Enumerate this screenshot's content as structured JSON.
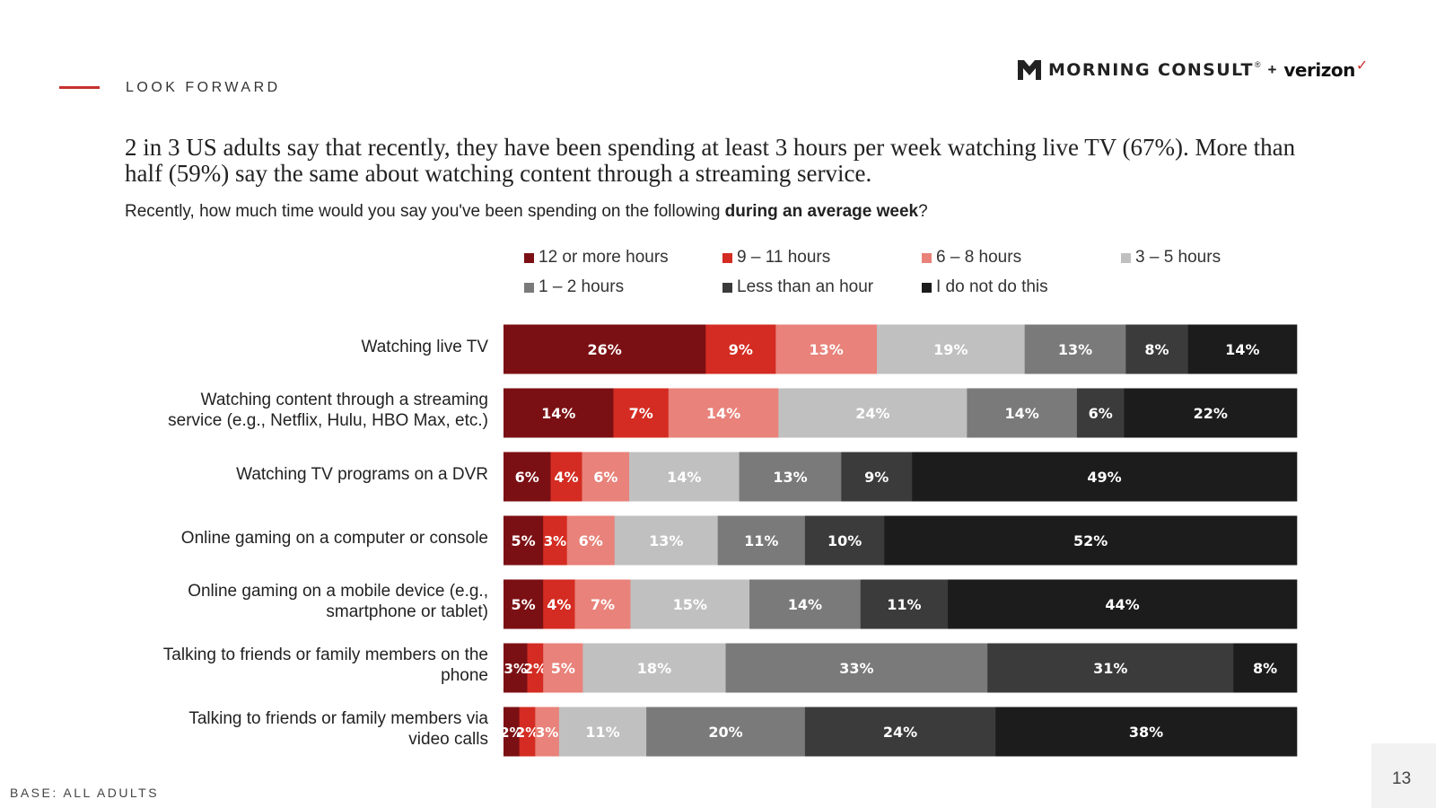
{
  "section_label": "LOOK FORWARD",
  "logo": {
    "brand": "MORNING CONSULT",
    "tm": "®",
    "plus": "+",
    "partner": "verizon",
    "check": "✓"
  },
  "headline": "2 in 3 US adults say that recently, they have been spending at least 3 hours per week watching live TV (67%). More than half (59%) say the same about watching content through a streaming service.",
  "question": {
    "pre": "Recently, how much time would you say you've been spending on the following ",
    "bold": "during an average week",
    "post": "?"
  },
  "footer": {
    "base": "BASE: ALL ADULTS",
    "page_number": "13"
  },
  "colors": {
    "accent": "#c8312e",
    "categories": [
      "#7b1014",
      "#d42c22",
      "#e8827a",
      "#c0c0c0",
      "#7a7a7a",
      "#3b3b3b",
      "#1c1c1c"
    ]
  },
  "chart_data": {
    "type": "bar",
    "orientation": "horizontal",
    "stacked": true,
    "normalized": true,
    "legend_position": "top",
    "series_names": [
      "12 or more hours",
      "9 – 11 hours",
      "6 – 8 hours",
      "3 – 5 hours",
      "1 – 2 hours",
      "Less than an hour",
      "I do not do this"
    ],
    "categories": [
      "Watching live TV",
      "Watching content through a streaming service (e.g., Netflix, Hulu, HBO Max, etc.)",
      "Watching TV programs on a DVR",
      "Online gaming on a computer or console",
      "Online gaming on a mobile device (e.g., smartphone or tablet)",
      "Talking to friends or family members on the phone",
      "Talking to friends or family members via video calls"
    ],
    "values": [
      [
        26,
        9,
        13,
        19,
        13,
        8,
        14
      ],
      [
        14,
        7,
        14,
        24,
        14,
        6,
        22
      ],
      [
        6,
        4,
        6,
        14,
        13,
        9,
        49
      ],
      [
        5,
        3,
        6,
        13,
        11,
        10,
        52
      ],
      [
        5,
        4,
        7,
        15,
        14,
        11,
        44
      ],
      [
        3,
        2,
        5,
        18,
        33,
        31,
        8
      ],
      [
        2,
        2,
        3,
        11,
        20,
        24,
        38
      ]
    ],
    "value_suffix": "%"
  }
}
